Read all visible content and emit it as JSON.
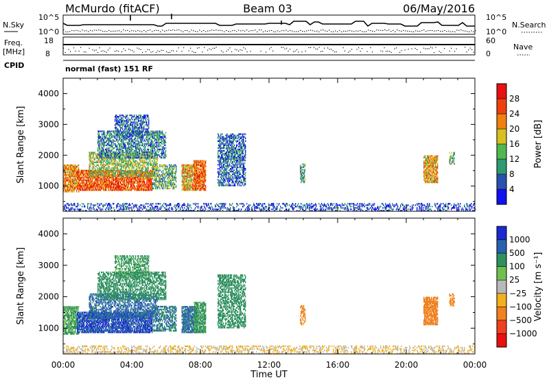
{
  "chart_data": {
    "type": "heatmap",
    "title_left": "McMurdo (fitACF)",
    "title_center": "Beam 03",
    "title_right": "06/May/2016",
    "header": {
      "nsky_label": "N.Sky",
      "nsearch_label": "N.Search",
      "nsky_ticks": [
        "10^5",
        "10^0"
      ],
      "nsearch_ticks": [
        "10^5",
        "10^0"
      ],
      "freq_label": "Freq.",
      "freq_unit": "[MHz]",
      "freq_ticks": [
        18,
        8
      ],
      "nave_label": "Nave",
      "nave_ticks": [
        60,
        0
      ],
      "cpid_label": "CPID",
      "cpid_text": "normal (fast) 151 RF"
    },
    "xlabel": "Time UT",
    "x_ticks": [
      "00:00",
      "04:00",
      "08:00",
      "12:00",
      "16:00",
      "20:00",
      "00:00"
    ],
    "xlim": [
      0,
      24
    ],
    "panels": [
      {
        "name": "power",
        "ylabel": "Slant Range [km]",
        "ylim": [
          180,
          4500
        ],
        "y_ticks": [
          1000,
          2000,
          3000,
          4000
        ],
        "colorbar_label": "Power [dB]",
        "colorbar_ticks": [
          "4",
          "8",
          "12",
          "16",
          "20",
          "24",
          "28"
        ],
        "colorbar_colors": [
          "#1010f0",
          "#2a50b0",
          "#2f9a70",
          "#50b850",
          "#d8c020",
          "#f08010",
          "#f04010",
          "#e81010"
        ]
      },
      {
        "name": "velocity",
        "ylabel": "Slant Range [km]",
        "ylim": [
          180,
          4500
        ],
        "y_ticks": [
          1000,
          2000,
          3000,
          4000
        ],
        "colorbar_label": "Velocity [m s⁻¹]",
        "colorbar_ticks": [
          "1000",
          "500",
          "100",
          "25",
          "−25",
          "−100",
          "−500",
          "−1000"
        ],
        "colorbar_colors": [
          "#1a2ad0",
          "#2a60b0",
          "#2f9060",
          "#70c050",
          "#b8b8b8",
          "#f0b020",
          "#f08020",
          "#f04020",
          "#e81010"
        ]
      }
    ],
    "regions": [
      {
        "t": [
          0.0,
          0.9
        ],
        "r": [
          800,
          1700
        ],
        "p": 22,
        "v": 120
      },
      {
        "t": [
          0.8,
          5.2
        ],
        "r": [
          850,
          1500
        ],
        "p": 25,
        "v": 900
      },
      {
        "t": [
          1.5,
          5.5
        ],
        "r": [
          1300,
          2100
        ],
        "p": 15,
        "v": 700
      },
      {
        "t": [
          2.0,
          6.0
        ],
        "r": [
          1900,
          2800
        ],
        "p": 9,
        "v": 300
      },
      {
        "t": [
          3.0,
          5.0
        ],
        "r": [
          2600,
          3300
        ],
        "p": 7,
        "v": 150
      },
      {
        "t": [
          5.2,
          6.6
        ],
        "r": [
          900,
          1700
        ],
        "p": 12,
        "v": 500
      },
      {
        "t": [
          6.9,
          7.8
        ],
        "r": [
          850,
          1700
        ],
        "p": 20,
        "v": 600
      },
      {
        "t": [
          7.6,
          8.3
        ],
        "r": [
          850,
          1800
        ],
        "p": 24,
        "v": 150
      },
      {
        "t": [
          9.0,
          10.6
        ],
        "r": [
          1000,
          2700
        ],
        "p": 7,
        "v": 300
      },
      {
        "t": [
          13.8,
          14.1
        ],
        "r": [
          1100,
          1700
        ],
        "p": 12,
        "v": -150
      },
      {
        "t": [
          21.0,
          21.8
        ],
        "r": [
          1100,
          2000
        ],
        "p": 20,
        "v": -300
      },
      {
        "t": [
          22.5,
          22.8
        ],
        "r": [
          1700,
          2100
        ],
        "p": 12,
        "v": -150
      },
      {
        "t": [
          0.0,
          24.0
        ],
        "r": [
          180,
          450
        ],
        "p": 5,
        "v": -30
      }
    ]
  }
}
